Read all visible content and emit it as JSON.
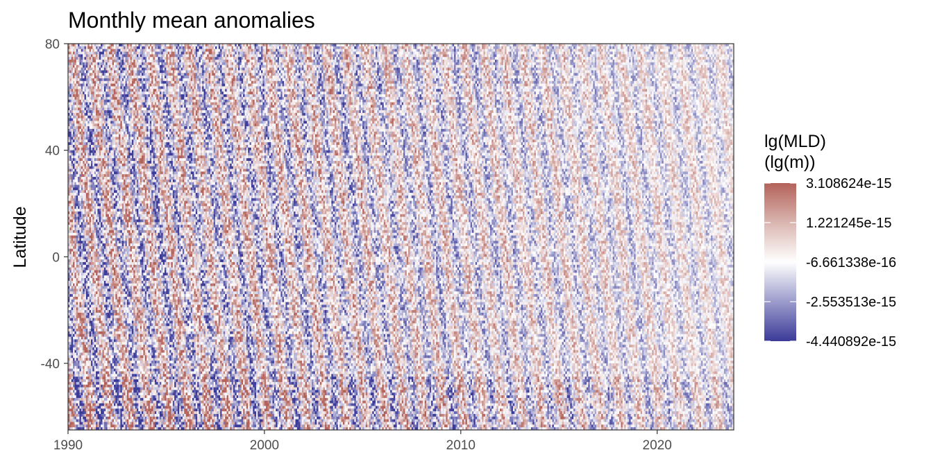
{
  "chart_data": {
    "type": "heatmap",
    "title": "Monthly mean anomalies",
    "xlabel": "",
    "ylabel": "Latitude",
    "xlim": [
      1990,
      2023.9
    ],
    "ylim": [
      -65,
      80
    ],
    "x_ticks": [
      1990,
      2000,
      2010,
      2020
    ],
    "x_tick_labels": [
      "1990",
      "2000",
      "2010",
      "2020"
    ],
    "y_ticks": [
      -40,
      0,
      40,
      80
    ],
    "y_tick_labels": [
      "-40",
      "0",
      "40",
      "80"
    ],
    "x_resolution": "monthly",
    "y_resolution_deg": 1,
    "grid": false,
    "legend": {
      "title_line1": "lg(MLD)",
      "title_line2": "(lg(m))",
      "placement": "right",
      "scale": "diverging",
      "color_low": "#3b3a98",
      "color_mid": "#ffffff",
      "color_high": "#b3625a",
      "limits": [
        -4.440892e-15,
        3.108624e-15
      ],
      "midpoint": -6.661338e-16,
      "breaks": [
        3.108624e-15,
        1.221245e-15,
        -6.661338e-16,
        -2.553513e-15,
        -4.440892e-15
      ],
      "break_labels": [
        "3.108624e-15",
        "1.221245e-15",
        "-6.661338e-16",
        "-2.553513e-15",
        "-4.440892e-15"
      ]
    },
    "pattern": "Anomalies are at floating-point rounding level (order 1e-15) with a repeating annual striping in every latitude band; amplitude decreases over time, with the strongest values before about 2000 and near -50 to -65 latitude."
  }
}
